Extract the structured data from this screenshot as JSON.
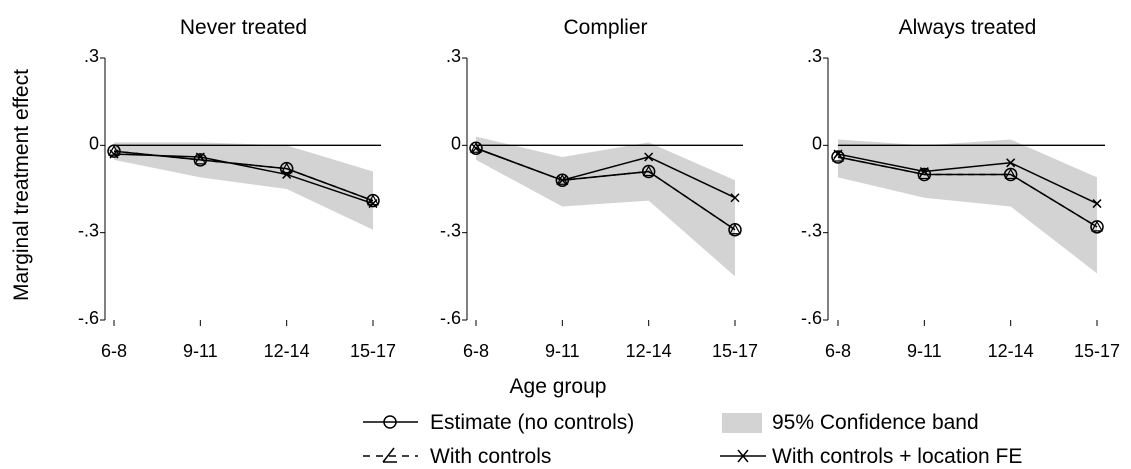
{
  "figure": {
    "ylabel": "Marginal treatment effect",
    "xlabel": "Age group"
  },
  "legend": {
    "items": [
      {
        "label": "Estimate (no controls)",
        "marker": "circle"
      },
      {
        "label": "95% Confidence band",
        "marker": "band"
      },
      {
        "label": "With controls",
        "marker": "triangle"
      },
      {
        "label": "With controls + location FE",
        "marker": "x"
      }
    ]
  },
  "colors": {
    "band": "#d3d3d3",
    "line": "#000000"
  },
  "chart_data": [
    {
      "type": "line",
      "title": "Never treated",
      "categories": [
        "6-8",
        "9-11",
        "12-14",
        "15-17"
      ],
      "ylim": [
        -0.6,
        0.3
      ],
      "yticks": [
        0.3,
        0,
        -0.3,
        -0.6
      ],
      "ytick_labels": [
        ".3",
        "0",
        "-.3",
        "-.6"
      ],
      "series": [
        {
          "name": "Estimate (no controls)",
          "values": [
            -0.02,
            -0.05,
            -0.08,
            -0.19
          ]
        },
        {
          "name": "With controls",
          "values": [
            -0.02,
            -0.05,
            -0.08,
            -0.19
          ]
        },
        {
          "name": "With controls + location FE",
          "values": [
            -0.03,
            -0.04,
            -0.1,
            -0.2
          ]
        }
      ],
      "band": {
        "name": "95% Confidence band",
        "lower": [
          -0.05,
          -0.11,
          -0.15,
          -0.29
        ],
        "upper": [
          0.01,
          0.01,
          0.0,
          -0.09
        ]
      }
    },
    {
      "type": "line",
      "title": "Complier",
      "categories": [
        "6-8",
        "9-11",
        "12-14",
        "15-17"
      ],
      "ylim": [
        -0.6,
        0.3
      ],
      "yticks": [
        0.3,
        0,
        -0.3,
        -0.6
      ],
      "ytick_labels": [
        ".3",
        "0",
        "-.3",
        "-.6"
      ],
      "series": [
        {
          "name": "Estimate (no controls)",
          "values": [
            -0.01,
            -0.12,
            -0.09,
            -0.29
          ]
        },
        {
          "name": "With controls",
          "values": [
            -0.01,
            -0.12,
            -0.09,
            -0.29
          ]
        },
        {
          "name": "With controls + location FE",
          "values": [
            -0.01,
            -0.12,
            -0.04,
            -0.18
          ]
        }
      ],
      "band": {
        "name": "95% Confidence band",
        "lower": [
          -0.05,
          -0.21,
          -0.19,
          -0.45
        ],
        "upper": [
          0.03,
          -0.04,
          0.01,
          -0.12
        ]
      }
    },
    {
      "type": "line",
      "title": "Always treated",
      "categories": [
        "6-8",
        "9-11",
        "12-14",
        "15-17"
      ],
      "ylim": [
        -0.6,
        0.3
      ],
      "yticks": [
        0.3,
        0,
        -0.3,
        -0.6
      ],
      "ytick_labels": [
        ".3",
        "0",
        "-.3",
        "-.6"
      ],
      "series": [
        {
          "name": "Estimate (no controls)",
          "values": [
            -0.04,
            -0.1,
            -0.1,
            -0.28
          ]
        },
        {
          "name": "With controls",
          "values": [
            -0.04,
            -0.1,
            -0.1,
            -0.28
          ]
        },
        {
          "name": "With controls + location FE",
          "values": [
            -0.03,
            -0.09,
            -0.06,
            -0.2
          ]
        }
      ],
      "band": {
        "name": "95% Confidence band",
        "lower": [
          -0.11,
          -0.18,
          -0.21,
          -0.44
        ],
        "upper": [
          0.02,
          0.0,
          0.02,
          -0.11
        ]
      }
    }
  ]
}
